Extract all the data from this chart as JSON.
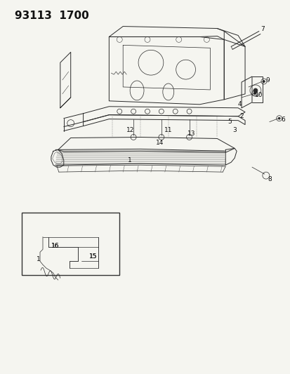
{
  "title": "93113  1700",
  "title_fontsize": 11,
  "title_fontweight": "bold",
  "bg_color": "#f5f5f0",
  "line_color": "#2a2a2a",
  "label_color": "#111111",
  "label_fontsize": 6.5,
  "fig_width": 4.14,
  "fig_height": 5.33,
  "fig_dpi": 100
}
